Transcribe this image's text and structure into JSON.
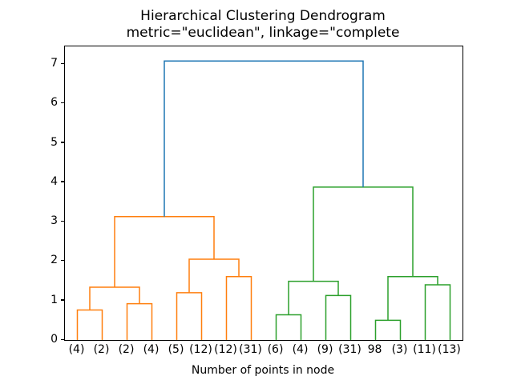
{
  "chart_data": {
    "type": "dendrogram",
    "title": "Hierarchical Clustering Dendrogram",
    "subtitle": "metric=\"euclidean\", linkage=\"complete",
    "xlabel": "Number of points in node",
    "ylim": [
      0,
      7.45
    ],
    "yticks": [
      0,
      1,
      2,
      3,
      4,
      5,
      6,
      7
    ],
    "grid": false,
    "legend": "none",
    "leaf_labels": [
      "(4)",
      "(2)",
      "(2)",
      "(4)",
      "(5)",
      "(12)",
      "(12)",
      "(31)",
      "(6)",
      "(4)",
      "(9)",
      "(31)",
      "98",
      "(3)",
      "(11)",
      "(13)"
    ],
    "colors": {
      "blue": "#1f77b4",
      "orange": "#ff7f0e",
      "green": "#2ca02c"
    },
    "links": [
      {
        "c": "orange",
        "x1": 0.5,
        "x2": 1.5,
        "h": 0.76,
        "b1": 0,
        "b2": 0
      },
      {
        "c": "orange",
        "x1": 2.5,
        "x2": 3.5,
        "h": 0.92,
        "b1": 0,
        "b2": 0
      },
      {
        "c": "orange",
        "x1": 1.0,
        "x2": 3.0,
        "h": 1.34,
        "b1": 0.76,
        "b2": 0.92
      },
      {
        "c": "orange",
        "x1": 4.5,
        "x2": 5.5,
        "h": 1.2,
        "b1": 0,
        "b2": 0
      },
      {
        "c": "orange",
        "x1": 6.5,
        "x2": 7.5,
        "h": 1.61,
        "b1": 0,
        "b2": 0
      },
      {
        "c": "orange",
        "x1": 5.0,
        "x2": 7.0,
        "h": 2.05,
        "b1": 1.2,
        "b2": 1.61
      },
      {
        "c": "orange",
        "x1": 2.0,
        "x2": 6.0,
        "h": 3.13,
        "b1": 1.34,
        "b2": 2.05
      },
      {
        "c": "green",
        "x1": 8.5,
        "x2": 9.5,
        "h": 0.64,
        "b1": 0,
        "b2": 0
      },
      {
        "c": "green",
        "x1": 10.5,
        "x2": 11.5,
        "h": 1.13,
        "b1": 0,
        "b2": 0
      },
      {
        "c": "green",
        "x1": 9.0,
        "x2": 11.0,
        "h": 1.49,
        "b1": 0.64,
        "b2": 1.13
      },
      {
        "c": "green",
        "x1": 12.5,
        "x2": 13.5,
        "h": 0.5,
        "b1": 0,
        "b2": 0
      },
      {
        "c": "green",
        "x1": 14.5,
        "x2": 15.5,
        "h": 1.4,
        "b1": 0,
        "b2": 0
      },
      {
        "c": "green",
        "x1": 13.0,
        "x2": 15.0,
        "h": 1.61,
        "b1": 0.5,
        "b2": 1.4
      },
      {
        "c": "green",
        "x1": 10.0,
        "x2": 14.0,
        "h": 3.88,
        "b1": 1.49,
        "b2": 1.61
      },
      {
        "c": "blue",
        "x1": 4.0,
        "x2": 12.0,
        "h": 7.08,
        "b1": 3.13,
        "b2": 3.88
      }
    ]
  }
}
